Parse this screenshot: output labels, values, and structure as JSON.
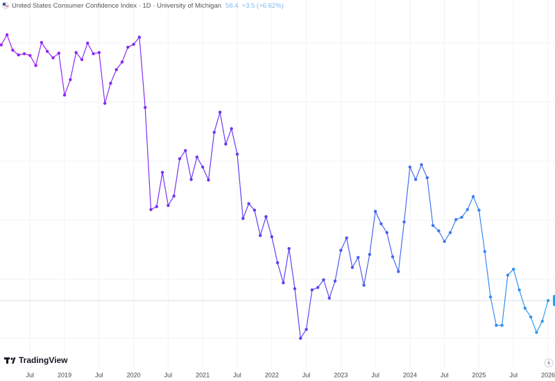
{
  "chart_data": {
    "type": "line",
    "title": "United States Consumer Confidence Index · 1D · University of Michigan",
    "last_price": "56.4",
    "last_change": "+3.5 (+6.62%)",
    "brand": "TradingView",
    "xlim": [
      "2018-01",
      "2026-01"
    ],
    "ylim": [
      45,
      107.3
    ],
    "grid": true,
    "ygrid": [
      50,
      60,
      70,
      80,
      90,
      100
    ],
    "xticks": [
      {
        "value": "2018-07",
        "label": "Jul"
      },
      {
        "value": "2019-01",
        "label": "2019"
      },
      {
        "value": "2019-07",
        "label": "Jul"
      },
      {
        "value": "2020-01",
        "label": "2020"
      },
      {
        "value": "2020-07",
        "label": "Jul"
      },
      {
        "value": "2021-01",
        "label": "2021"
      },
      {
        "value": "2021-07",
        "label": "Jul"
      },
      {
        "value": "2022-01",
        "label": "2022"
      },
      {
        "value": "2022-07",
        "label": "Jul"
      },
      {
        "value": "2023-01",
        "label": "2023"
      },
      {
        "value": "2023-07",
        "label": "Jul"
      },
      {
        "value": "2024-01",
        "label": "2024"
      },
      {
        "value": "2024-07",
        "label": "Jul"
      },
      {
        "value": "2025-01",
        "label": "2025"
      },
      {
        "value": "2025-07",
        "label": "Jul"
      },
      {
        "value": "2026-01",
        "label": "2026"
      }
    ],
    "x": [
      "2018-02",
      "2018-03",
      "2018-04",
      "2018-05",
      "2018-06",
      "2018-07",
      "2018-08",
      "2018-09",
      "2018-10",
      "2018-11",
      "2018-12",
      "2019-01",
      "2019-02",
      "2019-03",
      "2019-04",
      "2019-05",
      "2019-06",
      "2019-07",
      "2019-08",
      "2019-09",
      "2019-10",
      "2019-11",
      "2019-12",
      "2020-01",
      "2020-02",
      "2020-03",
      "2020-04",
      "2020-05",
      "2020-06",
      "2020-07",
      "2020-08",
      "2020-09",
      "2020-10",
      "2020-11",
      "2020-12",
      "2021-01",
      "2021-02",
      "2021-03",
      "2021-04",
      "2021-05",
      "2021-06",
      "2021-07",
      "2021-08",
      "2021-09",
      "2021-10",
      "2021-11",
      "2021-12",
      "2022-01",
      "2022-02",
      "2022-03",
      "2022-04",
      "2022-05",
      "2022-06",
      "2022-07",
      "2022-08",
      "2022-09",
      "2022-10",
      "2022-11",
      "2022-12",
      "2023-01",
      "2023-02",
      "2023-03",
      "2023-04",
      "2023-05",
      "2023-06",
      "2023-07",
      "2023-08",
      "2023-09",
      "2023-10",
      "2023-11",
      "2023-12",
      "2024-01",
      "2024-02",
      "2024-03",
      "2024-04",
      "2024-05",
      "2024-06",
      "2024-07",
      "2024-08",
      "2024-09",
      "2024-10",
      "2024-11",
      "2024-12",
      "2025-01",
      "2025-02",
      "2025-03",
      "2025-04",
      "2025-05",
      "2025-06",
      "2025-07",
      "2025-08",
      "2025-09",
      "2025-10",
      "2025-11",
      "2025-12",
      "2026-01"
    ],
    "series": [
      {
        "colors": [
          "#a21ff2",
          "#5b3ef0",
          "#2aa0f2"
        ],
        "values": [
          99.7,
          101.4,
          98.8,
          98.0,
          98.2,
          97.9,
          96.2,
          100.1,
          98.6,
          97.5,
          98.3,
          91.2,
          93.8,
          98.4,
          97.2,
          100.0,
          98.2,
          98.4,
          89.8,
          93.2,
          95.5,
          96.8,
          99.3,
          99.8,
          101.0,
          89.1,
          71.8,
          72.3,
          78.1,
          72.5,
          74.1,
          80.4,
          81.8,
          76.9,
          80.7,
          79.0,
          76.8,
          84.9,
          88.3,
          82.9,
          85.5,
          81.2,
          70.3,
          72.8,
          71.7,
          67.4,
          70.6,
          67.2,
          62.8,
          59.4,
          65.2,
          58.4,
          50.0,
          51.5,
          58.2,
          58.6,
          59.9,
          56.8,
          59.7,
          64.9,
          67.0,
          62.0,
          63.7,
          59.0,
          64.2,
          71.5,
          69.4,
          67.9,
          63.8,
          61.3,
          69.7,
          79.0,
          76.9,
          79.4,
          77.2,
          69.1,
          68.2,
          66.4,
          67.9,
          70.1,
          70.5,
          71.8,
          74.0,
          71.7,
          64.7,
          57.0,
          52.2,
          52.2,
          60.7,
          61.7,
          58.2,
          55.1,
          53.6,
          51.0,
          52.9,
          56.4
        ]
      }
    ]
  }
}
